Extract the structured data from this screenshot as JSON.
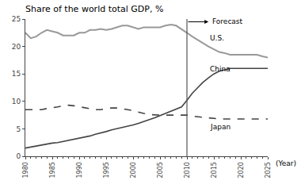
{
  "chart_data": {
    "type": "line",
    "title": "Share of the world total GDP, %",
    "xlabel": "(Year)",
    "x": [
      1980,
      1981,
      1982,
      1983,
      1984,
      1985,
      1986,
      1987,
      1988,
      1989,
      1990,
      1991,
      1992,
      1993,
      1994,
      1995,
      1996,
      1997,
      1998,
      1999,
      2000,
      2001,
      2002,
      2003,
      2004,
      2005,
      2006,
      2007,
      2008,
      2009,
      2010,
      2011,
      2012,
      2013,
      2014,
      2015,
      2016,
      2017,
      2018,
      2019,
      2020,
      2021,
      2022,
      2023,
      2024,
      2025
    ],
    "series": [
      {
        "name": "U.S.",
        "color": "#999999",
        "line_style": "solid",
        "values": [
          22.5,
          21.5,
          21.8,
          22.5,
          23.0,
          22.8,
          22.5,
          22.0,
          22.0,
          22.0,
          22.5,
          22.5,
          23.0,
          23.0,
          23.2,
          23.0,
          23.2,
          23.5,
          23.8,
          23.8,
          23.5,
          23.2,
          23.5,
          23.5,
          23.5,
          23.5,
          23.8,
          24.0,
          23.8,
          23.2,
          22.5,
          21.8,
          21.2,
          20.5,
          20.0,
          19.5,
          19.0,
          18.8,
          18.5,
          18.5,
          18.5,
          18.5,
          18.5,
          18.5,
          18.2,
          18.0
        ]
      },
      {
        "name": "China",
        "color": "#444444",
        "line_style": "solid",
        "values": [
          1.5,
          1.7,
          1.9,
          2.0,
          2.2,
          2.4,
          2.5,
          2.7,
          2.9,
          3.0,
          3.2,
          3.4,
          3.7,
          4.0,
          4.2,
          4.5,
          4.8,
          5.0,
          5.2,
          5.4,
          5.7,
          6.0,
          6.3,
          6.6,
          7.0,
          7.4,
          7.8,
          8.2,
          8.6,
          9.0,
          10.2,
          11.5,
          12.5,
          13.5,
          14.3,
          15.0,
          15.5,
          15.8,
          16.0,
          16.0,
          16.0,
          16.0,
          16.0,
          16.0,
          16.0,
          16.0
        ]
      },
      {
        "name": "Japan",
        "color": "#444444",
        "line_style": "dashed",
        "values": [
          8.5,
          8.5,
          8.5,
          8.5,
          8.7,
          8.8,
          9.0,
          9.2,
          9.3,
          9.2,
          9.0,
          8.8,
          8.6,
          8.5,
          8.5,
          8.7,
          8.8,
          8.8,
          8.7,
          8.5,
          8.3,
          8.0,
          7.8,
          7.6,
          7.5,
          7.5,
          7.5,
          7.5,
          7.5,
          7.5,
          7.5,
          7.3,
          7.2,
          7.0,
          6.9,
          6.8,
          6.8,
          6.8,
          6.8,
          6.8,
          6.8,
          6.8,
          6.8,
          6.8,
          6.8,
          6.8
        ]
      }
    ],
    "annotations": [
      {
        "text": "Forecast",
        "x": 2010,
        "color": "#555555"
      }
    ],
    "xlim": [
      1980,
      2025
    ],
    "xticks": [
      1980,
      1985,
      1990,
      1995,
      2000,
      2005,
      2010,
      2015,
      2020,
      2025
    ],
    "ylim": [
      0,
      25
    ],
    "yticks": [
      0,
      5,
      10,
      15,
      20,
      25
    ],
    "grid": false
  }
}
